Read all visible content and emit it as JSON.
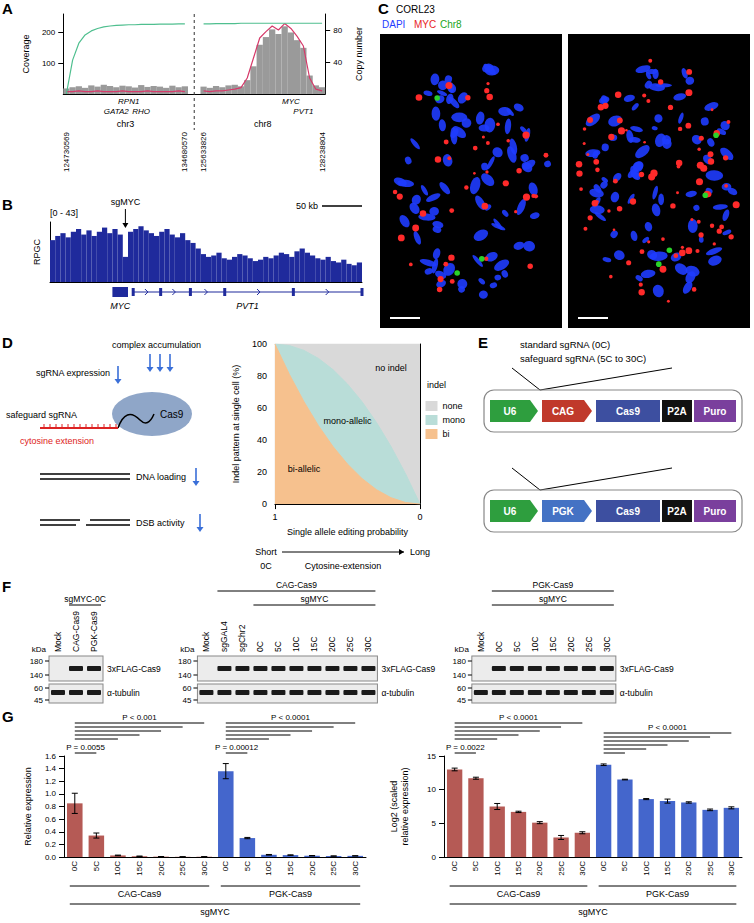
{
  "chart_data": [
    {
      "panel": "A",
      "type": "bar",
      "ylabel": "Coverage",
      "y2label": "Copy number",
      "categories": [
        "124730569",
        null,
        null,
        null,
        null,
        null,
        null,
        null,
        null,
        null,
        null,
        null,
        null,
        null,
        null,
        null,
        null,
        null,
        null,
        "134680570",
        null,
        null,
        "125633826",
        null,
        null,
        null,
        null,
        null,
        null,
        null,
        null,
        null,
        null,
        null,
        null,
        null,
        null,
        null,
        null,
        null,
        null,
        "128238804"
      ],
      "series": [
        {
          "type": "bar",
          "color": "#9a9a9a",
          "values": [
            18,
            22,
            25,
            20,
            28,
            24,
            30,
            26,
            22,
            27,
            25,
            21,
            29,
            23,
            26,
            24,
            20,
            27,
            22,
            25,
            null,
            null,
            24,
            20,
            26,
            22,
            28,
            30,
            25,
            45,
            90,
            160,
            185,
            210,
            195,
            220,
            200,
            175,
            150,
            60,
            28,
            22
          ]
        },
        {
          "type": "line",
          "color": "#d63a6a",
          "axis": "y2",
          "values": [
            3,
            3,
            4,
            3,
            3,
            4,
            3,
            3,
            3,
            4,
            3,
            3,
            3,
            4,
            3,
            3,
            3,
            3,
            4,
            3,
            null,
            null,
            4,
            3,
            4,
            4,
            5,
            6,
            8,
            20,
            45,
            70,
            78,
            85,
            80,
            88,
            82,
            72,
            60,
            20,
            6,
            4
          ]
        },
        {
          "type": "line",
          "color": "#4fbf8f",
          "values": [
            0,
            110,
            165,
            192,
            205,
            213,
            218,
            221,
            223,
            224,
            225,
            225,
            226,
            226,
            226,
            227,
            227,
            227,
            228,
            228,
            null,
            null,
            228,
            228,
            229,
            229,
            229,
            229,
            230,
            230,
            230,
            230,
            230,
            230,
            230,
            230,
            230,
            230,
            230,
            230,
            230,
            230
          ]
        }
      ],
      "ylim": [
        0,
        260
      ],
      "yticks": [
        100,
        200
      ],
      "y2lim": [
        0,
        100
      ],
      "y2ticks": [
        40,
        80
      ],
      "genes": [
        {
          "label": "RPN1",
          "bin": 10
        },
        {
          "label": "GATA2",
          "bin": 8
        },
        {
          "label": "RHO",
          "bin": 12
        },
        {
          "label": "MYC",
          "bin": 36
        },
        {
          "label": "PVT1",
          "bin": 38
        }
      ],
      "chromosomes": [
        {
          "label": "chr3",
          "from": 0,
          "to": 19
        },
        {
          "label": "chr8",
          "from": 22,
          "to": 41
        }
      ]
    },
    {
      "panel": "B",
      "type": "bar",
      "ylabel": "RPGC",
      "range_label": "[0 - 43]",
      "ylim": [
        0,
        43
      ],
      "tick_labels": false,
      "color": "#1f2a9c",
      "values": [
        30,
        33,
        35,
        32,
        36,
        38,
        34,
        37,
        33,
        36,
        39,
        35,
        38,
        34,
        18,
        36,
        38,
        40,
        37,
        35,
        33,
        36,
        38,
        34,
        32,
        35,
        30,
        28,
        24,
        20,
        18,
        19,
        21,
        17,
        16,
        18,
        20,
        19,
        17,
        15,
        16,
        18,
        17,
        19,
        21,
        20,
        18,
        22,
        24,
        21,
        19,
        17,
        16,
        18,
        15,
        14,
        16,
        13,
        12,
        14
      ],
      "marker_label": {
        "text": "sgMYC",
        "bin": 14
      },
      "scale_bar": "50 kb",
      "genes": [
        {
          "label": "MYC",
          "from": 12,
          "to": 14
        },
        {
          "label": "PVT1",
          "from": 16,
          "to": 59
        }
      ]
    },
    {
      "type": "area",
      "stacked": true,
      "xlabel": "Single allele editing probability",
      "ylabel": "Indel pattern at single cell (%)",
      "x": [
        1,
        0.9,
        0.8,
        0.7,
        0.6,
        0.5,
        0.4,
        0.3,
        0.2,
        0.1,
        0
      ],
      "xlim": [
        1,
        0
      ],
      "xticks": [
        1,
        0
      ],
      "ylim": [
        0,
        100
      ],
      "yticks": [
        0,
        20,
        40,
        60,
        80,
        100
      ],
      "legend": "right",
      "legend_title": "indel",
      "series": [
        {
          "name": "bi",
          "color": "#f6c18e",
          "values": [
            100,
            81,
            64,
            49,
            36,
            25,
            16,
            9,
            4,
            1,
            0
          ]
        },
        {
          "name": "mono",
          "color": "#b9ddd8",
          "values": [
            0,
            18,
            32,
            42,
            48,
            50,
            48,
            42,
            32,
            18,
            0
          ]
        },
        {
          "name": "none",
          "color": "#d9d9d9",
          "values": [
            0,
            1,
            4,
            9,
            16,
            25,
            36,
            49,
            64,
            81,
            100
          ]
        }
      ],
      "annotations": [
        {
          "text": "bi-allelic",
          "x": 0.8,
          "y": 22
        },
        {
          "text": "mono-allelic",
          "x": 0.5,
          "y": 52
        },
        {
          "text": "no indel",
          "x": 0.2,
          "y": 85
        }
      ]
    },
    {
      "panel": "G",
      "type": "bar",
      "ylabel": "Relative expression",
      "xlabel": "sgMYC",
      "categories": [
        "0C",
        "5C",
        "10C",
        "15C",
        "20C",
        "25C",
        "30C"
      ],
      "groups": [
        {
          "label": "CAG-Cas9",
          "color": "#b55a55",
          "values": [
            0.85,
            0.34,
            0.025,
            0.012,
            0.006,
            0.003,
            0.004
          ],
          "errors": [
            0.16,
            0.04,
            0.005,
            0.002,
            0.001,
            0.001,
            0.001
          ]
        },
        {
          "label": "PGK-Cas9",
          "color": "#4466cc",
          "values": [
            1.36,
            0.3,
            0.035,
            0.03,
            0.02,
            0.015,
            0.018
          ],
          "errors": [
            0.12,
            0.01,
            0.005,
            0.004,
            0.003,
            0.002,
            0.002
          ]
        }
      ],
      "ylim": [
        0,
        1.6
      ],
      "yticks": [
        {
          "value": 0,
          "label": "0.0"
        },
        0.2,
        0.4,
        0.6,
        0.8,
        {
          "value": 1,
          "label": "1.0"
        },
        1.2,
        1.4,
        1.6
      ],
      "comparisons": [
        {
          "group": "CAG-Cas9",
          "ref": "0C",
          "targets": [
            "5C"
          ],
          "label": "P = 0.0055"
        },
        {
          "group": "CAG-Cas9",
          "ref": "0C",
          "targets": [
            "10C",
            "15C",
            "20C",
            "25C",
            "30C"
          ],
          "label": "P < 0.001"
        },
        {
          "group": "PGK-Cas9",
          "ref": "0C",
          "targets": [
            "5C"
          ],
          "label": "P = 0.00012"
        },
        {
          "group": "PGK-Cas9",
          "ref": "0C",
          "targets": [
            "10C",
            "15C",
            "20C",
            "25C",
            "30C"
          ],
          "label": "P < 0.0001"
        }
      ]
    },
    {
      "type": "bar",
      "ylabel": "Log2 (scaled relative expression)",
      "xlabel": "sgMYC",
      "categories": [
        "0C",
        "5C",
        "10C",
        "15C",
        "20C",
        "25C",
        "30C"
      ],
      "groups": [
        {
          "label": "CAG-Cas9",
          "color": "#b55a55",
          "values": [
            13.0,
            11.7,
            7.5,
            6.7,
            5.1,
            2.9,
            3.6
          ],
          "errors": [
            0.2,
            0.15,
            0.45,
            0.1,
            0.15,
            0.3,
            0.15
          ]
        },
        {
          "label": "PGK-Cas9",
          "color": "#4466cc",
          "values": [
            13.7,
            11.5,
            8.6,
            8.3,
            8.1,
            7.0,
            7.3
          ],
          "errors": [
            0.12,
            0.05,
            0.08,
            0.3,
            0.1,
            0.12,
            0.15
          ]
        }
      ],
      "ylim": [
        0,
        15
      ],
      "yticks": [
        0,
        5,
        10,
        15
      ],
      "comparisons": [
        {
          "group": "CAG-Cas9",
          "ref": "0C",
          "targets": [
            "5C"
          ],
          "label": "P = 0.0022"
        },
        {
          "group": "CAG-Cas9",
          "ref": "0C",
          "targets": [
            "10C",
            "15C",
            "20C",
            "25C",
            "30C"
          ],
          "label": "P < 0.0001"
        },
        {
          "group": "PGK-Cas9",
          "ref": "0C",
          "targets": [
            "5C",
            "10C",
            "15C",
            "20C",
            "25C",
            "30C"
          ],
          "label": "P < 0.0001"
        }
      ]
    }
  ],
  "figure": {
    "C": {
      "letter": "C",
      "title": "CORL23",
      "channels": [
        {
          "label": "DAPI",
          "color": "#1f3cff"
        },
        {
          "label": "MYC",
          "color": "#e81e1e"
        },
        {
          "label": "Chr8",
          "color": "#1aa51a"
        }
      ]
    },
    "D": {
      "letter": "D",
      "labels": {
        "expression": "sgRNA expression",
        "accumulation": "complex accumulation",
        "sgrna": "safeguard sgRNA",
        "protein": "Cas9",
        "extension": "cytosine extension",
        "loading": "DNA loading",
        "activity": "DSB activity"
      },
      "scale": {
        "short": "Short",
        "short_sub": "0C",
        "middle": "Cytosine-extension",
        "long": "Long"
      }
    },
    "E": {
      "letter": "E",
      "insert": [
        "standard sgRNA (0C)",
        "safeguard sgRNA (5C to 30C)"
      ],
      "constructs": [
        {
          "promoter": "U6",
          "pol2": "CAG",
          "cassette": [
            "Cas9",
            "P2A",
            "Puro"
          ]
        },
        {
          "promoter": "U6",
          "pol2": "PGK",
          "cassette": [
            "Cas9",
            "P2A",
            "Puro"
          ]
        }
      ]
    },
    "F": {
      "letter": "F",
      "kda": "kDa",
      "top": {
        "label": "3xFLAG-Cas9",
        "markers": [
          180,
          140
        ]
      },
      "bottom": {
        "label": "α-tubulin",
        "markers": [
          60,
          45
        ]
      },
      "empty_lanes": [
        "Mock"
      ],
      "blots": [
        {
          "lanes": [
            "Mock",
            "CAG-Cas9",
            "PGK-Cas9"
          ],
          "headers": [
            {
              "label": "sgMYC-0C",
              "from": "CAG-Cas9",
              "to": "PGK-Cas9"
            }
          ]
        },
        {
          "lanes": [
            "Mock",
            "sgGAL4",
            "sgChr2",
            "0C",
            "5C",
            "10C",
            "15C",
            "20C",
            "25C",
            "30C"
          ],
          "headers": [
            {
              "label": "CAG-Cas9",
              "from": "sgGAL4",
              "to": "30C"
            },
            {
              "label": "sgMYC",
              "from": "0C",
              "to": "30C"
            }
          ]
        },
        {
          "lanes": [
            "Mock",
            "0C",
            "5C",
            "10C",
            "15C",
            "20C",
            "25C",
            "30C"
          ],
          "headers": [
            {
              "label": "PGK-Cas9",
              "from": "0C",
              "to": "30C"
            },
            {
              "label": "sgMYC",
              "from": "0C",
              "to": "30C"
            }
          ]
        }
      ]
    }
  }
}
